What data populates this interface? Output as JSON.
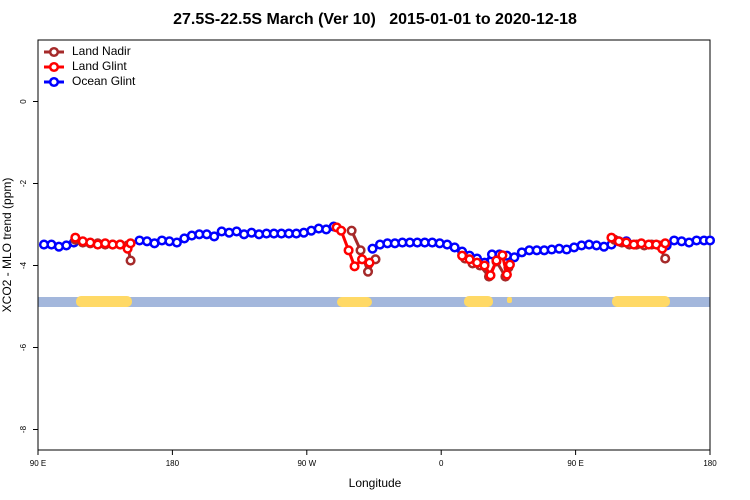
{
  "chart_data": {
    "type": "line",
    "title": "27.5S-22.5S March (Ver 10)   2015-01-01 to 2020-12-18",
    "x_label": "Longitude",
    "y_label": "XCO2 - MLO trend (ppm)",
    "xlim": [
      90,
      540
    ],
    "ylim": [
      -8.5,
      1.5
    ],
    "xticks": [
      {
        "value": 90,
        "label": "90 E"
      },
      {
        "value": 180,
        "label": "180"
      },
      {
        "value": 270,
        "label": "90 W"
      },
      {
        "value": 360,
        "label": "0"
      },
      {
        "value": 450,
        "label": "90 E"
      },
      {
        "value": 540,
        "label": "180"
      }
    ],
    "yticks": [
      0,
      -2,
      -4,
      -6,
      -8
    ],
    "legend": "top-left",
    "series": [
      {
        "name": "Land Nadir",
        "color": "#a52a2a",
        "x": [
          115,
          120,
          125,
          130,
          135,
          140,
          145,
          150,
          152,
          200,
          300,
          306,
          311,
          316,
          350,
          376,
          381,
          386,
          392,
          397,
          403,
          405,
          440,
          476,
          481,
          486,
          491,
          496,
          501,
          506,
          510
        ],
        "values": [
          -3.37,
          -3.44,
          -3.46,
          -3.46,
          -3.49,
          -3.49,
          -3.49,
          -3.51,
          -3.88,
          null,
          -3.15,
          -3.63,
          -4.15,
          -3.85,
          null,
          -3.83,
          -3.95,
          -4.0,
          -4.27,
          -3.9,
          -4.27,
          -4.05,
          null,
          -3.37,
          -3.44,
          -3.49,
          -3.49,
          -3.51,
          -3.49,
          -3.51,
          -3.83
        ]
      },
      {
        "name": "Land Glint",
        "color": "#ff0000",
        "x": [
          115,
          120,
          125,
          130,
          135,
          140,
          145,
          150,
          152,
          200,
          290,
          293,
          298,
          302,
          307,
          312,
          350,
          374,
          379,
          384,
          389,
          393,
          397,
          401,
          404,
          406,
          440,
          474,
          479,
          484,
          489,
          494,
          499,
          504,
          508,
          510
        ],
        "values": [
          -3.32,
          -3.41,
          -3.44,
          -3.49,
          -3.46,
          -3.49,
          -3.49,
          -3.59,
          -3.46,
          null,
          -3.07,
          -3.15,
          -3.63,
          -4.02,
          -3.85,
          -3.93,
          null,
          -3.76,
          -3.85,
          -3.93,
          -4.0,
          -4.24,
          -3.88,
          -3.75,
          -4.22,
          -3.98,
          null,
          -3.32,
          -3.41,
          -3.44,
          -3.49,
          -3.46,
          -3.49,
          -3.49,
          -3.59,
          -3.46
        ]
      },
      {
        "name": "Ocean Glint",
        "color": "#0000ff",
        "x": [
          94,
          99,
          104,
          109,
          114,
          130,
          158,
          163,
          168,
          173,
          178,
          183,
          188,
          193,
          198,
          203,
          208,
          213,
          218,
          223,
          228,
          233,
          238,
          243,
          248,
          253,
          258,
          263,
          268,
          273,
          278,
          283,
          288,
          300,
          314,
          319,
          324,
          329,
          334,
          339,
          344,
          349,
          354,
          359,
          364,
          369,
          374,
          379,
          384,
          389,
          394,
          399,
          404,
          409,
          414,
          419,
          424,
          429,
          434,
          439,
          444,
          449,
          454,
          459,
          464,
          469,
          474,
          479,
          484,
          500,
          511,
          516,
          521,
          526,
          531,
          536,
          540
        ],
        "values": [
          -3.49,
          -3.49,
          -3.54,
          -3.51,
          -3.44,
          null,
          -3.39,
          -3.41,
          -3.46,
          -3.39,
          -3.41,
          -3.44,
          -3.34,
          -3.27,
          -3.24,
          -3.24,
          -3.29,
          -3.17,
          -3.2,
          -3.17,
          -3.24,
          -3.2,
          -3.24,
          -3.22,
          -3.22,
          -3.22,
          -3.22,
          -3.22,
          -3.2,
          -3.15,
          -3.1,
          -3.12,
          -3.05,
          null,
          -3.59,
          -3.49,
          -3.46,
          -3.46,
          -3.44,
          -3.44,
          -3.44,
          -3.44,
          -3.44,
          -3.46,
          -3.49,
          -3.56,
          -3.66,
          -3.76,
          -3.83,
          -3.93,
          -3.73,
          -3.73,
          -3.76,
          -3.8,
          -3.68,
          -3.63,
          -3.63,
          -3.63,
          -3.61,
          -3.59,
          -3.61,
          -3.56,
          -3.51,
          -3.49,
          -3.51,
          -3.54,
          -3.49,
          -3.41,
          -3.41,
          null,
          -3.51,
          -3.39,
          -3.41,
          -3.44,
          -3.39,
          -3.39,
          -3.39
        ]
      }
    ]
  }
}
